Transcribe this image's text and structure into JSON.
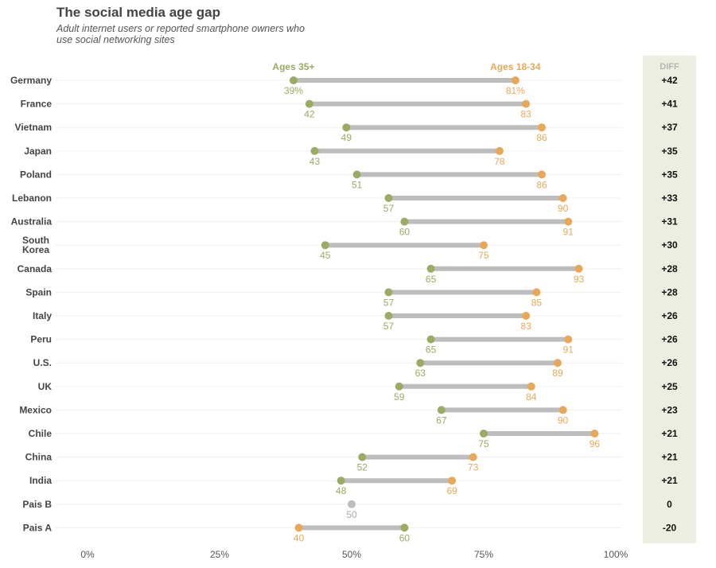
{
  "title": "The social media age gap",
  "subtitle": "Adult internet users or reported smartphone owners who use social networking sites",
  "legend": {
    "older": "Ages 35+",
    "younger": "Ages 18-34"
  },
  "diff_header": "DIFF",
  "colors": {
    "older": "#9aab63",
    "younger": "#e8a858",
    "neutral": "#bdbdbd",
    "bar": "#bdbdbd",
    "diff_panel": "#eceee2",
    "label": "#444444",
    "diff_text": "#111111",
    "axis_text": "#555555"
  },
  "chart_data": {
    "type": "dumbbell",
    "title": "The social media age gap",
    "xlim": [
      0,
      100
    ],
    "x_ticks": [
      "0%",
      "25%",
      "50%",
      "75%",
      "100%"
    ],
    "x_tick_values": [
      0,
      25,
      50,
      75,
      100
    ],
    "series": [
      {
        "name": "Ages 35+"
      },
      {
        "name": "Ages 18-34"
      }
    ],
    "rows": [
      {
        "country": "Germany",
        "older": 39,
        "younger": 81,
        "older_label": "39%",
        "younger_label": "81%",
        "diff": "+42"
      },
      {
        "country": "France",
        "older": 42,
        "younger": 83,
        "older_label": "42",
        "younger_label": "83",
        "diff": "+41"
      },
      {
        "country": "Vietnam",
        "older": 49,
        "younger": 86,
        "older_label": "49",
        "younger_label": "86",
        "diff": "+37"
      },
      {
        "country": "Japan",
        "older": 43,
        "younger": 78,
        "older_label": "43",
        "younger_label": "78",
        "diff": "+35"
      },
      {
        "country": "Poland",
        "older": 51,
        "younger": 86,
        "older_label": "51",
        "younger_label": "86",
        "diff": "+35"
      },
      {
        "country": "Lebanon",
        "older": 57,
        "younger": 90,
        "older_label": "57",
        "younger_label": "90",
        "diff": "+33"
      },
      {
        "country": "Australia",
        "older": 60,
        "younger": 91,
        "older_label": "60",
        "younger_label": "91",
        "diff": "+31"
      },
      {
        "country": "South Korea",
        "country_lines": [
          "South",
          "Korea"
        ],
        "older": 45,
        "younger": 75,
        "older_label": "45",
        "younger_label": "75",
        "diff": "+30"
      },
      {
        "country": "Canada",
        "older": 65,
        "younger": 93,
        "older_label": "65",
        "younger_label": "93",
        "diff": "+28"
      },
      {
        "country": "Spain",
        "older": 57,
        "younger": 85,
        "older_label": "57",
        "younger_label": "85",
        "diff": "+28"
      },
      {
        "country": "Italy",
        "older": 57,
        "younger": 83,
        "older_label": "57",
        "younger_label": "83",
        "diff": "+26"
      },
      {
        "country": "Peru",
        "older": 65,
        "younger": 91,
        "older_label": "65",
        "younger_label": "91",
        "diff": "+26"
      },
      {
        "country": "U.S.",
        "older": 63,
        "younger": 89,
        "older_label": "63",
        "younger_label": "89",
        "diff": "+26"
      },
      {
        "country": "UK",
        "older": 59,
        "younger": 84,
        "older_label": "59",
        "younger_label": "84",
        "diff": "+25"
      },
      {
        "country": "Mexico",
        "older": 67,
        "younger": 90,
        "older_label": "67",
        "younger_label": "90",
        "diff": "+23"
      },
      {
        "country": "Chile",
        "older": 75,
        "younger": 96,
        "older_label": "75",
        "younger_label": "96",
        "diff": "+21"
      },
      {
        "country": "China",
        "older": 52,
        "younger": 73,
        "older_label": "52",
        "younger_label": "73",
        "diff": "+21"
      },
      {
        "country": "India",
        "older": 48,
        "younger": 69,
        "older_label": "48",
        "younger_label": "69",
        "diff": "+21"
      },
      {
        "country": "Pais B",
        "older": 50,
        "younger": 50,
        "older_label": "50",
        "younger_label": "",
        "diff": "0"
      },
      {
        "country": "Pais A",
        "older": 60,
        "younger": 40,
        "older_label": "60",
        "younger_label": "40",
        "diff": "-20"
      }
    ]
  }
}
